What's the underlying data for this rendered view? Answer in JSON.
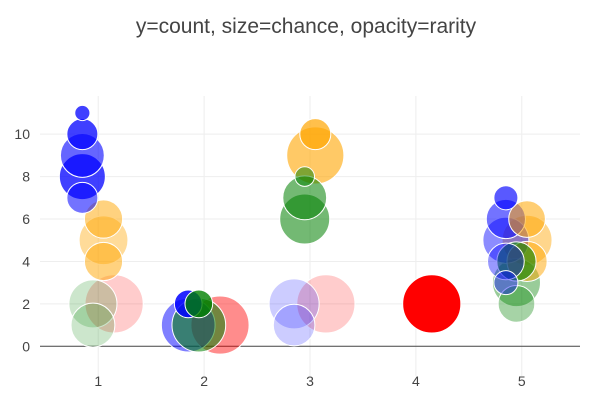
{
  "chart_data": {
    "type": "scatter",
    "title": "y=count, size=chance, opacity=rarity",
    "xlabel": "",
    "ylabel": "",
    "x_ticks": [
      "1",
      "2",
      "3",
      "4",
      "5"
    ],
    "y_ticks": [
      "0",
      "2",
      "4",
      "6",
      "8",
      "10"
    ],
    "xlim": [
      0.45,
      5.55
    ],
    "ylim": [
      -1.4,
      11.8
    ],
    "grid": true,
    "legend": "none",
    "series": [
      {
        "color": "#0000ff",
        "points": [
          {
            "x": 0.85,
            "y": 11,
            "size": 0.06,
            "opacity": 0.75
          },
          {
            "x": 0.85,
            "y": 10,
            "size": 0.25,
            "opacity": 0.75
          },
          {
            "x": 0.85,
            "y": 9,
            "size": 0.5,
            "opacity": 0.6
          },
          {
            "x": 0.85,
            "y": 8,
            "size": 0.55,
            "opacity": 0.75
          },
          {
            "x": 0.85,
            "y": 7,
            "size": 0.25,
            "opacity": 0.55
          },
          {
            "x": 1.85,
            "y": 2,
            "size": 0.2,
            "opacity": 0.85
          },
          {
            "x": 1.85,
            "y": 1,
            "size": 0.75,
            "opacity": 0.5
          },
          {
            "x": 2.85,
            "y": 2,
            "size": 0.65,
            "opacity": 0.2
          },
          {
            "x": 2.85,
            "y": 1,
            "size": 0.45,
            "opacity": 0.2
          },
          {
            "x": 4.85,
            "y": 7,
            "size": 0.15,
            "opacity": 0.65
          },
          {
            "x": 4.85,
            "y": 6,
            "size": 0.4,
            "opacity": 0.55
          },
          {
            "x": 4.85,
            "y": 5,
            "size": 0.55,
            "opacity": 0.45
          },
          {
            "x": 4.85,
            "y": 4,
            "size": 0.35,
            "opacity": 0.4
          },
          {
            "x": 4.85,
            "y": 3,
            "size": 0.15,
            "opacity": 0.4
          }
        ]
      },
      {
        "color": "#008000",
        "points": [
          {
            "x": 0.95,
            "y": 2,
            "size": 0.6,
            "opacity": 0.2
          },
          {
            "x": 0.95,
            "y": 1,
            "size": 0.5,
            "opacity": 0.2
          },
          {
            "x": 1.95,
            "y": 2,
            "size": 0.2,
            "opacity": 0.8
          },
          {
            "x": 1.95,
            "y": 1,
            "size": 0.75,
            "opacity": 0.55
          },
          {
            "x": 2.95,
            "y": 8,
            "size": 0.1,
            "opacity": 0.5
          },
          {
            "x": 2.95,
            "y": 7,
            "size": 0.5,
            "opacity": 0.55
          },
          {
            "x": 2.95,
            "y": 6,
            "size": 0.65,
            "opacity": 0.55
          },
          {
            "x": 4.95,
            "y": 4,
            "size": 0.4,
            "opacity": 0.6
          },
          {
            "x": 4.95,
            "y": 3,
            "size": 0.6,
            "opacity": 0.4
          },
          {
            "x": 4.95,
            "y": 2,
            "size": 0.35,
            "opacity": 0.35
          }
        ]
      },
      {
        "color": "#ffa500",
        "points": [
          {
            "x": 1.05,
            "y": 6,
            "size": 0.38,
            "opacity": 0.5
          },
          {
            "x": 1.05,
            "y": 5,
            "size": 0.62,
            "opacity": 0.4
          },
          {
            "x": 1.05,
            "y": 4,
            "size": 0.38,
            "opacity": 0.5
          },
          {
            "x": 3.05,
            "y": 10,
            "size": 0.25,
            "opacity": 0.7
          },
          {
            "x": 3.05,
            "y": 9,
            "size": 0.85,
            "opacity": 0.6
          },
          {
            "x": 5.05,
            "y": 6,
            "size": 0.35,
            "opacity": 0.55
          },
          {
            "x": 5.05,
            "y": 5,
            "size": 0.65,
            "opacity": 0.45
          },
          {
            "x": 5.05,
            "y": 4,
            "size": 0.42,
            "opacity": 0.5
          }
        ]
      },
      {
        "color": "#ff0000",
        "points": [
          {
            "x": 1.15,
            "y": 2,
            "size": 0.88,
            "opacity": 0.2
          },
          {
            "x": 2.15,
            "y": 1,
            "size": 0.88,
            "opacity": 0.45
          },
          {
            "x": 3.15,
            "y": 2,
            "size": 0.88,
            "opacity": 0.2
          },
          {
            "x": 4.15,
            "y": 2,
            "size": 0.88,
            "opacity": 1.0
          }
        ]
      }
    ]
  }
}
